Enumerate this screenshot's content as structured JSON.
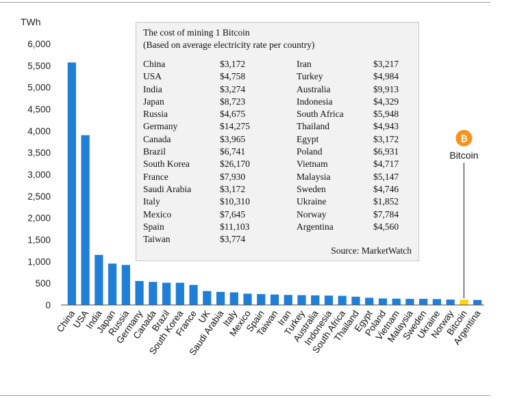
{
  "chart_data": {
    "type": "bar",
    "unit_label": "TWh",
    "ylim": [
      0,
      6000
    ],
    "yticks": [
      "0",
      "500",
      "1,000",
      "1,500",
      "2,000",
      "2,500",
      "3,000",
      "3,500",
      "4,000",
      "4,500",
      "5,000",
      "5,500",
      "6,000"
    ],
    "categories": [
      "China",
      "USA",
      "India",
      "Japan",
      "Russia",
      "Germany",
      "Canada",
      "Brazil",
      "South Korea",
      "France",
      "UK",
      "Saudi Arabia",
      "Italy",
      "Mexico",
      "Spain",
      "Taiwan",
      "Iran",
      "Turkey",
      "Australia",
      "Indonesia",
      "South Africa",
      "Thailand",
      "Egypt",
      "Poland",
      "Vietnam",
      "Malaysia",
      "Sweden",
      "Ukraine",
      "Norway",
      "Bitcoin",
      "Argentina"
    ],
    "values": [
      5570,
      3900,
      1150,
      950,
      920,
      550,
      530,
      510,
      510,
      460,
      320,
      300,
      290,
      260,
      250,
      240,
      230,
      225,
      220,
      215,
      210,
      190,
      165,
      150,
      145,
      140,
      140,
      135,
      125,
      120,
      115
    ],
    "highlight": "Bitcoin",
    "colors": {
      "bar": "#1f7fd6",
      "highlight": "#ffd400",
      "bitcoin_icon": "#f7931a"
    },
    "annotation": {
      "label": "Bitcoin",
      "icon": "bitcoin-icon",
      "icon_glyph": "₿",
      "target": "Bitcoin"
    },
    "grid": false
  },
  "infobox": {
    "title_line1": "The cost of mining 1 Bitcoin",
    "title_line2": "(Based on average electricity rate per country)",
    "source": "Source: MarketWatch",
    "left_column": [
      {
        "country": "China",
        "cost": "$3,172"
      },
      {
        "country": "USA",
        "cost": "$4,758"
      },
      {
        "country": "India",
        "cost": "$3,274"
      },
      {
        "country": "Japan",
        "cost": "$8,723"
      },
      {
        "country": "Russia",
        "cost": "$4,675"
      },
      {
        "country": "Germany",
        "cost": "$14,275"
      },
      {
        "country": "Canada",
        "cost": "$3,965"
      },
      {
        "country": "Brazil",
        "cost": "$6,741"
      },
      {
        "country": "South Korea",
        "cost": "$26,170"
      },
      {
        "country": "France",
        "cost": "$7,930"
      },
      {
        "country": "Saudi Arabia",
        "cost": "$3,172"
      },
      {
        "country": "Italy",
        "cost": "$10,310"
      },
      {
        "country": "Mexico",
        "cost": "$7,645"
      },
      {
        "country": "Spain",
        "cost": "$11,103"
      },
      {
        "country": "Taiwan",
        "cost": "$3,774"
      }
    ],
    "right_column": [
      {
        "country": "Iran",
        "cost": "$3,217"
      },
      {
        "country": "Turkey",
        "cost": "$4,984"
      },
      {
        "country": "Australia",
        "cost": "$9,913"
      },
      {
        "country": "Indonesia",
        "cost": "$4,329"
      },
      {
        "country": "South Africa",
        "cost": "$5,948"
      },
      {
        "country": "Thailand",
        "cost": "$4,943"
      },
      {
        "country": "Egypt",
        "cost": "$3,172"
      },
      {
        "country": "Poland",
        "cost": "$6,931"
      },
      {
        "country": "Vietnam",
        "cost": "$4,717"
      },
      {
        "country": "Malaysia",
        "cost": "$5,147"
      },
      {
        "country": "Sweden",
        "cost": "$4,746"
      },
      {
        "country": "Ukraine",
        "cost": "$1,852"
      },
      {
        "country": "Norway",
        "cost": "$7,784"
      },
      {
        "country": "Argentina",
        "cost": "$4,560"
      }
    ]
  }
}
